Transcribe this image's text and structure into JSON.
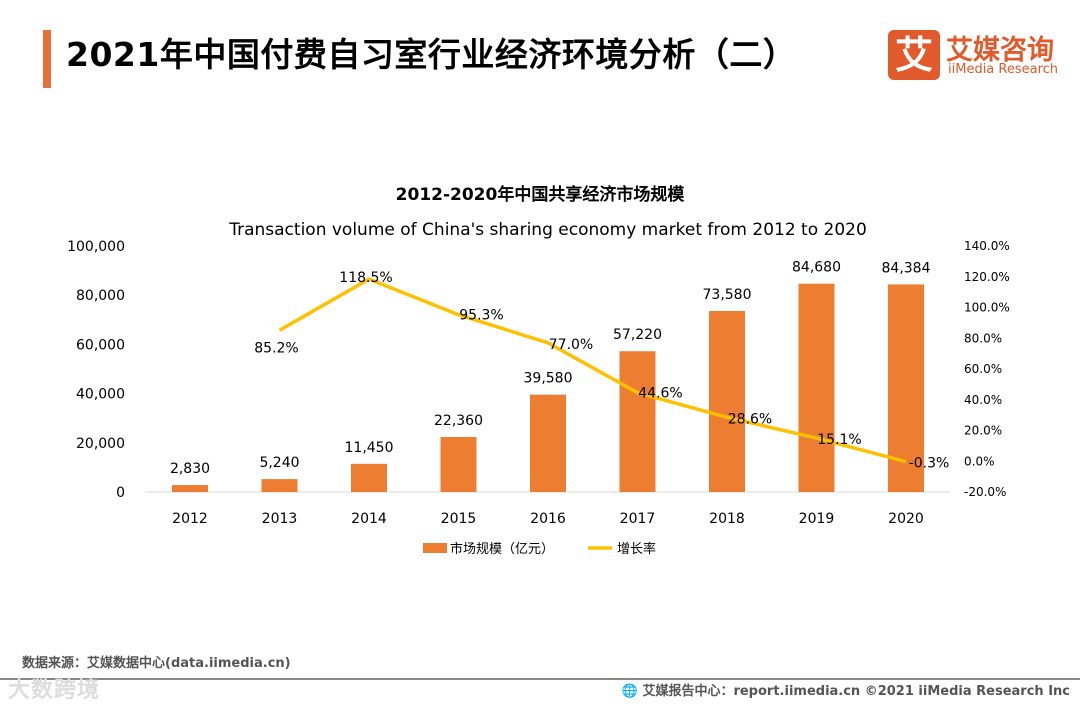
{
  "header": {
    "title": "2021年中国付费自习室行业经济环境分析（二）"
  },
  "logo": {
    "mark": "艾",
    "cn": "艾媒咨询",
    "en": "iiMedia Research"
  },
  "chart_data": {
    "type": "bar+line",
    "title": "2012-2020年中国共享经济市场规模",
    "subtitle": "Transaction volume of China's sharing economy market from 2012 to 2020",
    "categories": [
      "2012",
      "2013",
      "2014",
      "2015",
      "2016",
      "2017",
      "2018",
      "2019",
      "2020"
    ],
    "series": [
      {
        "name": "市场规模（亿元）",
        "type": "bar",
        "axis": "left",
        "color": "#ed7d31",
        "values": [
          2830,
          5240,
          11450,
          22360,
          39580,
          57220,
          73580,
          84680,
          84384
        ],
        "labels": [
          "2,830",
          "5,240",
          "11,450",
          "22,360",
          "39,580",
          "57,220",
          "73,580",
          "84,680",
          "84,384"
        ]
      },
      {
        "name": "增长率",
        "type": "line",
        "axis": "right",
        "color": "#ffc000",
        "x": [
          "2013",
          "2014",
          "2015",
          "2016",
          "2017",
          "2018",
          "2019",
          "2020"
        ],
        "values": [
          85.2,
          118.5,
          95.3,
          77.0,
          44.6,
          28.6,
          15.1,
          -0.3
        ],
        "labels": [
          "85.2%",
          "118.5%",
          "95.3%",
          "77.0%",
          "44.6%",
          "28.6%",
          "15.1%",
          "-0.3%"
        ]
      }
    ],
    "left_axis": {
      "range": [
        0,
        100000
      ],
      "ticks": [
        "0",
        "20,000",
        "40,000",
        "60,000",
        "80,000",
        "100,000"
      ]
    },
    "right_axis": {
      "range": [
        -20,
        140
      ],
      "ticks": [
        "-20.0%",
        "0.0%",
        "20.0%",
        "40.0%",
        "60.0%",
        "80.0%",
        "100.0%",
        "120.0%",
        "140.0%"
      ]
    },
    "grid": false,
    "legend": "bottom"
  },
  "footer": {
    "source": "数据来源：艾媒数据中心(data.iimedia.cn)",
    "report": "艾媒报告中心：report.iimedia.cn   ©2021  iiMedia Research  Inc",
    "watermark": "大数跨境"
  }
}
